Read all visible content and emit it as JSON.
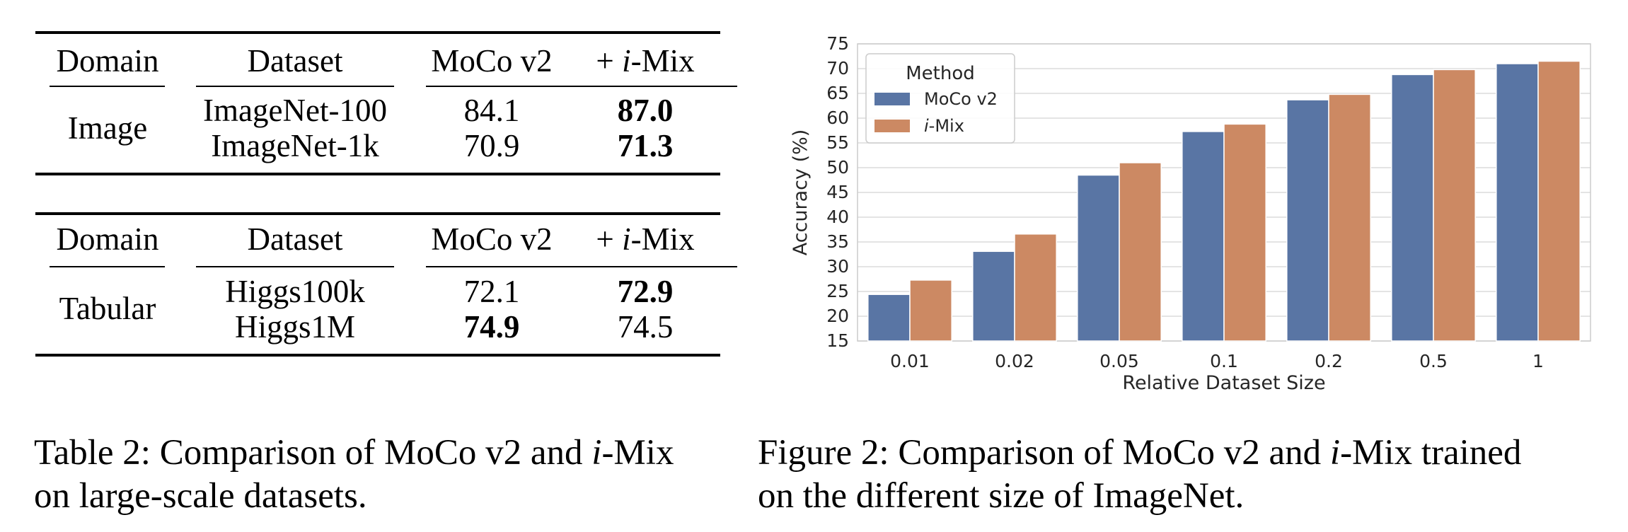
{
  "tables": [
    {
      "headers": [
        "Domain",
        "Dataset",
        "MoCo v2",
        "+ i-Mix"
      ],
      "domain": "Image",
      "rows": [
        {
          "dataset": "ImageNet-100",
          "moco": "84.1",
          "imix": "87.0",
          "bold": "imix"
        },
        {
          "dataset": "ImageNet-1k",
          "moco": "70.9",
          "imix": "71.3",
          "bold": "imix"
        }
      ]
    },
    {
      "headers": [
        "Domain",
        "Dataset",
        "MoCo v2",
        "+ i-Mix"
      ],
      "domain": "Tabular",
      "rows": [
        {
          "dataset": "Higgs100k",
          "moco": "72.1",
          "imix": "72.9",
          "bold": "imix"
        },
        {
          "dataset": "Higgs1M",
          "moco": "74.9",
          "imix": "74.5",
          "bold": "moco"
        }
      ]
    }
  ],
  "table_caption": {
    "line1": "Table 2: Comparison of MoCo v2 and i-Mix",
    "line2": "on large-scale datasets."
  },
  "figure_caption": {
    "line1": "Figure 2: Comparison of MoCo v2 and i-Mix trained",
    "line2": "on the different size of ImageNet."
  },
  "colors": {
    "moco": "#5975a4",
    "imix": "#cc8963",
    "grid": "#dcdcdc"
  },
  "chart_data": {
    "type": "bar",
    "categories": [
      "0.01",
      "0.02",
      "0.05",
      "0.1",
      "0.2",
      "0.5",
      "1"
    ],
    "series": [
      {
        "name": "MoCo v2",
        "values": [
          24.4,
          33.1,
          48.5,
          57.3,
          63.7,
          68.8,
          71.0
        ]
      },
      {
        "name": "i-Mix",
        "values": [
          27.3,
          36.6,
          51.0,
          58.8,
          64.8,
          69.8,
          71.5
        ]
      }
    ],
    "xlabel": "Relative Dataset Size",
    "ylabel": "Accuracy (%)",
    "ylim": [
      15,
      75
    ],
    "yticks": [
      15,
      20,
      25,
      30,
      35,
      40,
      45,
      50,
      55,
      60,
      65,
      70,
      75
    ],
    "legend_title": "Method",
    "legend_position": "top-left",
    "grid": true
  }
}
